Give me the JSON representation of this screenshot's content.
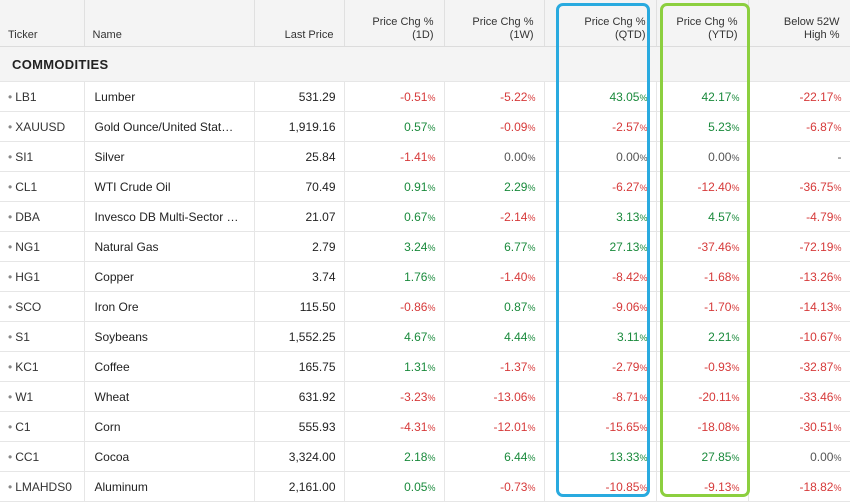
{
  "columns": {
    "ticker": "Ticker",
    "name": "Name",
    "last_price": "Last Price",
    "chg_1d_l1": "Price Chg %",
    "chg_1d_l2": "(1D)",
    "chg_1w_l1": "Price Chg %",
    "chg_1w_l2": "(1W)",
    "chg_qtd_l1": "Price Chg %",
    "chg_qtd_l2": "(QTD)",
    "chg_ytd_l1": "Price Chg %",
    "chg_ytd_l2": "(YTD)",
    "below_52w_l1": "Below 52W",
    "below_52w_l2": "High %"
  },
  "section_title": "COMMODITIES",
  "colors": {
    "positive": "#1a8a3c",
    "negative": "#d63a3a",
    "highlight_qtd": "#29aadf",
    "highlight_ytd": "#8ccf3f"
  },
  "rows": [
    {
      "ticker": "LB1",
      "name": "Lumber",
      "last": "531.29",
      "d1": "-0.51",
      "w1": "-5.22",
      "qtd": "43.05",
      "ytd": "42.17",
      "b52": "-22.17"
    },
    {
      "ticker": "XAUUSD",
      "name": "Gold Ounce/United Stat…",
      "last": "1,919.16",
      "d1": "0.57",
      "w1": "-0.09",
      "qtd": "-2.57",
      "ytd": "5.23",
      "b52": "-6.87"
    },
    {
      "ticker": "SI1",
      "name": "Silver",
      "last": "25.84",
      "d1": "-1.41",
      "w1": "0.00",
      "qtd": "0.00",
      "ytd": "0.00",
      "b52": "-"
    },
    {
      "ticker": "CL1",
      "name": "WTI Crude Oil",
      "last": "70.49",
      "d1": "0.91",
      "w1": "2.29",
      "qtd": "-6.27",
      "ytd": "-12.40",
      "b52": "-36.75"
    },
    {
      "ticker": "DBA",
      "name": "Invesco DB Multi-Sector …",
      "last": "21.07",
      "d1": "0.67",
      "w1": "-2.14",
      "qtd": "3.13",
      "ytd": "4.57",
      "b52": "-4.79"
    },
    {
      "ticker": "NG1",
      "name": "Natural Gas",
      "last": "2.79",
      "d1": "3.24",
      "w1": "6.77",
      "qtd": "27.13",
      "ytd": "-37.46",
      "b52": "-72.19"
    },
    {
      "ticker": "HG1",
      "name": "Copper",
      "last": "3.74",
      "d1": "1.76",
      "w1": "-1.40",
      "qtd": "-8.42",
      "ytd": "-1.68",
      "b52": "-13.26"
    },
    {
      "ticker": "SCO",
      "name": "Iron Ore",
      "last": "115.50",
      "d1": "-0.86",
      "w1": "0.87",
      "qtd": "-9.06",
      "ytd": "-1.70",
      "b52": "-14.13"
    },
    {
      "ticker": "S1",
      "name": "Soybeans",
      "last": "1,552.25",
      "d1": "4.67",
      "w1": "4.44",
      "qtd": "3.11",
      "ytd": "2.21",
      "b52": "-10.67"
    },
    {
      "ticker": "KC1",
      "name": "Coffee",
      "last": "165.75",
      "d1": "1.31",
      "w1": "-1.37",
      "qtd": "-2.79",
      "ytd": "-0.93",
      "b52": "-32.87"
    },
    {
      "ticker": "W1",
      "name": "Wheat",
      "last": "631.92",
      "d1": "-3.23",
      "w1": "-13.06",
      "qtd": "-8.71",
      "ytd": "-20.11",
      "b52": "-33.46"
    },
    {
      "ticker": "C1",
      "name": "Corn",
      "last": "555.93",
      "d1": "-4.31",
      "w1": "-12.01",
      "qtd": "-15.65",
      "ytd": "-18.08",
      "b52": "-30.51"
    },
    {
      "ticker": "CC1",
      "name": "Cocoa",
      "last": "3,324.00",
      "d1": "2.18",
      "w1": "6.44",
      "qtd": "13.33",
      "ytd": "27.85",
      "b52": "0.00"
    },
    {
      "ticker": "LMAHDS0",
      "name": "Aluminum",
      "last": "2,161.00",
      "d1": "0.05",
      "w1": "-0.73",
      "qtd": "-10.85",
      "ytd": "-9.13",
      "b52": "-18.82"
    }
  ]
}
